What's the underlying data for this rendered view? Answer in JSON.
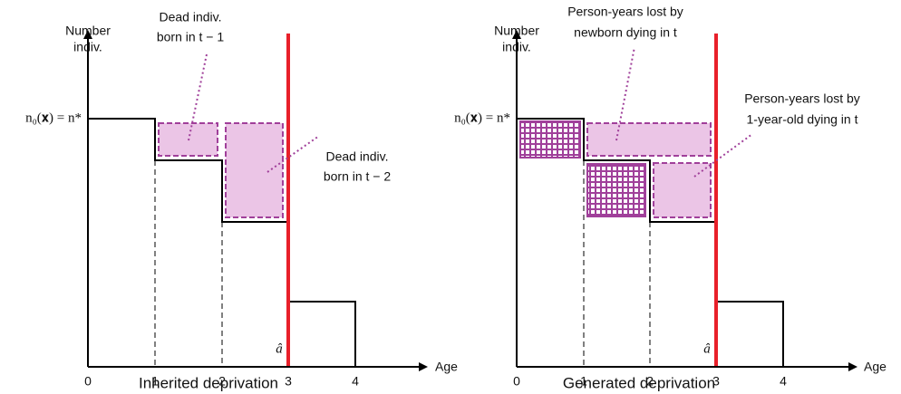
{
  "panels": [
    {
      "y_label": [
        "Number",
        "indiv."
      ],
      "level_label": "n₀(𝐱) = n*",
      "x_label": "Age",
      "ticks": [
        "0",
        "1",
        "2",
        "3",
        "4"
      ],
      "threshold_label": "â",
      "caption": "Inherited deprivation",
      "annotations": [
        {
          "lines": [
            "Dead indiv.",
            "born in t − 1"
          ]
        },
        {
          "lines": [
            "Dead indiv.",
            "born in t − 2"
          ]
        }
      ]
    },
    {
      "y_label": [
        "Number",
        "indiv."
      ],
      "level_label": "n₀(𝐱) = n*",
      "x_label": "Age",
      "ticks": [
        "0",
        "1",
        "2",
        "3",
        "4"
      ],
      "threshold_label": "â",
      "caption": "Generated deprivation",
      "annotations": [
        {
          "lines": [
            "Person-years lost by",
            "newborn dying in t"
          ]
        },
        {
          "lines": [
            "Person-years lost by",
            "1-year-old dying in t"
          ]
        }
      ]
    }
  ]
}
